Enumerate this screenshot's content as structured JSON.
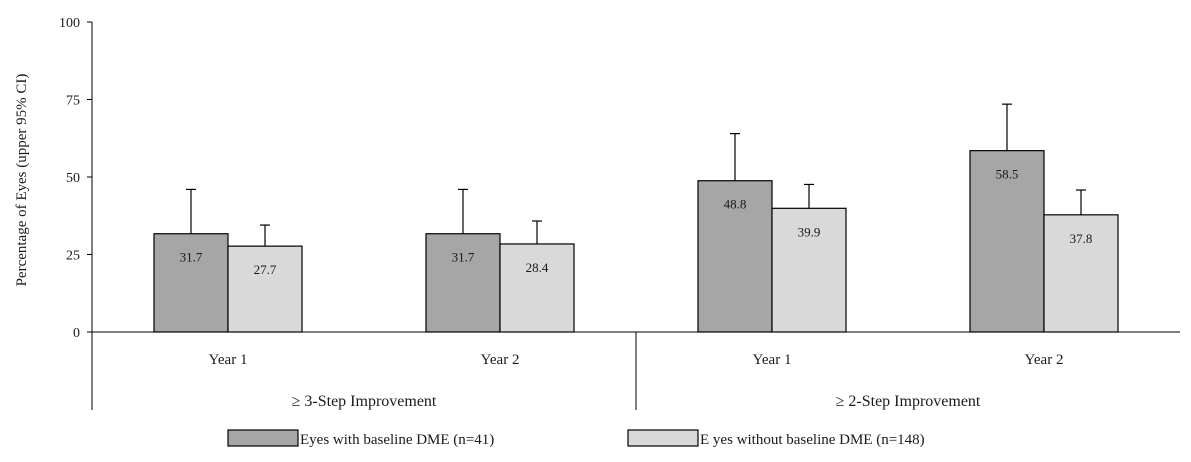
{
  "chart_data": {
    "type": "bar",
    "ylabel": "Percentage of Eyes (upper 95% CI)",
    "ylim": [
      0,
      100
    ],
    "yticks": [
      0,
      25,
      50,
      75,
      100
    ],
    "grid": false,
    "legend_position": "bottom",
    "groups": [
      {
        "label": "≥ 3-Step Improvement",
        "categories": [
          "Year 1",
          "Year 2"
        ]
      },
      {
        "label": "≥ 2-Step Improvement",
        "categories": [
          "Year 1",
          "Year 2"
        ]
      }
    ],
    "series": [
      {
        "name": "Eyes with baseline DME (n=41)",
        "color": "#a6a6a6",
        "values": [
          31.7,
          31.7,
          48.8,
          58.5
        ],
        "labels": [
          "31.7",
          "31.7",
          "48.8",
          "58.5"
        ],
        "upper_ci": [
          46,
          46,
          64,
          73.5
        ]
      },
      {
        "name": "E yes without baseline DME (n=148)",
        "color": "#d9d9d9",
        "values": [
          27.7,
          28.4,
          39.9,
          37.8
        ],
        "labels": [
          "27.7",
          "28.4",
          "39.9",
          "37.8"
        ],
        "upper_ci": [
          34.5,
          35.8,
          47.6,
          45.8
        ]
      }
    ]
  }
}
